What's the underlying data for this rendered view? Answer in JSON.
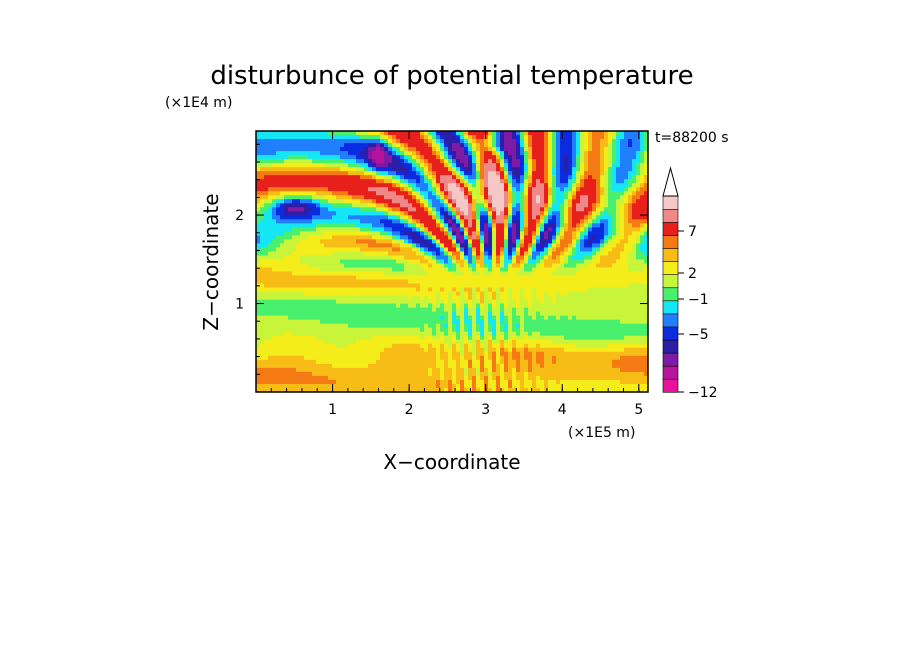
{
  "chart_data": {
    "type": "heatmap",
    "title": "disturbunce of potential temperature",
    "xlabel": "X−coordinate",
    "ylabel": "Z−coordinate",
    "x_unit": "(×1E5 m)",
    "y_unit": "(×1E4 m)",
    "time_label": "t=88200 s",
    "xlim": [
      0,
      5.12
    ],
    "ylim": [
      0,
      2.95
    ],
    "x_ticks": [
      1,
      2,
      3,
      4,
      5
    ],
    "x_tick_labels": [
      "1",
      "2",
      "3",
      "4",
      "5"
    ],
    "y_ticks": [
      1,
      2
    ],
    "y_tick_labels": [
      "1",
      "2"
    ],
    "field_description_levels": [
      -12,
      -10,
      -8,
      -6,
      -5,
      -4,
      -3,
      -2,
      -1,
      0,
      1,
      2,
      3,
      5,
      7,
      9,
      11
    ],
    "colorbar": {
      "colors": [
        "#e8129c",
        "#b8139c",
        "#7e1aa6",
        "#2d1ea8",
        "#0a2be0",
        "#1f7fff",
        "#15e6f5",
        "#49f06e",
        "#c8f53a",
        "#f5ed1a",
        "#f8bc16",
        "#f57a14",
        "#e8201c",
        "#f18888",
        "#f5c8c8"
      ],
      "tick_values": [
        7,
        2,
        -1,
        -5,
        -12
      ],
      "tick_labels": [
        "7",
        "2",
        "−1",
        "−5",
        "−12"
      ]
    },
    "grid": false,
    "legend": "colorbar right"
  }
}
